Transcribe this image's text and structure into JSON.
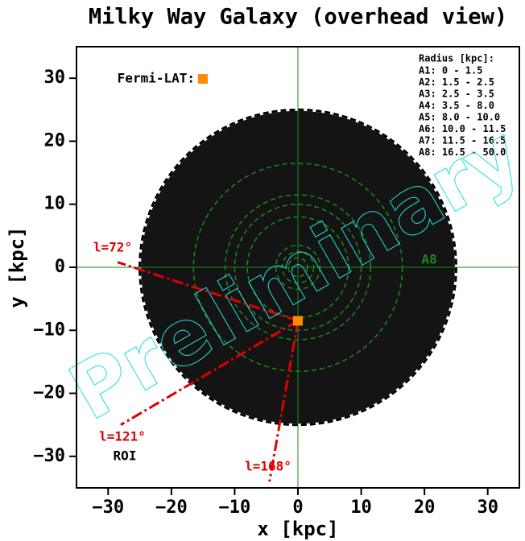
{
  "chart_data": {
    "type": "galaxy",
    "title": "Milky Way Galaxy (overhead view)",
    "xlabel": "x [kpc]",
    "ylabel": "y [kpc]",
    "xlim": [
      -35,
      35
    ],
    "ylim": [
      -35,
      35
    ],
    "xticks": [
      {
        "value": -30,
        "label": "−30"
      },
      {
        "value": -20,
        "label": "−20"
      },
      {
        "value": -10,
        "label": "−10"
      },
      0,
      10,
      20,
      30
    ],
    "yticks": [
      {
        "value": -30,
        "label": "−30"
      },
      {
        "value": -20,
        "label": "−20"
      },
      {
        "value": -10,
        "label": "−10"
      },
      0,
      10,
      20,
      30
    ],
    "disk_radius": 25,
    "rings": [
      1.5,
      2.5,
      3.5,
      8,
      10,
      11.5,
      16.5
    ],
    "ring_color": "#1a8a1a",
    "ring_label": "A8",
    "observer": {
      "name": "Fermi-LAT:",
      "x": 0,
      "y": -8.5,
      "color": "#ff8c00"
    },
    "sightlines": [
      {
        "label": "l=72°",
        "x": -28.5,
        "y": 0.8
      },
      {
        "label": "l=121°",
        "x": -28,
        "y": -25
      },
      {
        "label": "l=168°",
        "x": -4.5,
        "y": -34
      }
    ],
    "sightline_color": "#e00000",
    "roi_label": "ROI",
    "legend_title": "Radius [kpc]:",
    "legend": [
      "A1: 0 - 1.5",
      "A2: 1.5 - 2.5",
      "A3: 2.5 - 3.5",
      "A4: 3.5 - 8.0",
      "A5: 8.0 - 10.0",
      "A6: 10.0 - 11.5",
      "A7: 11.5 - 16.5",
      "A8: 16.5 - 50.0"
    ],
    "watermark": "Preliminary"
  }
}
